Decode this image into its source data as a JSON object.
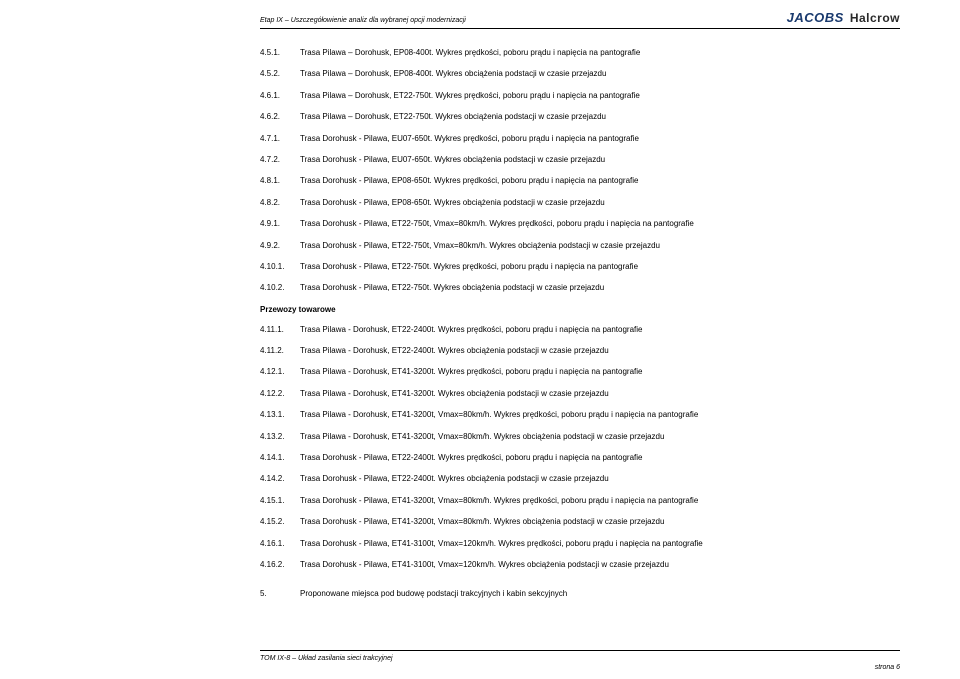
{
  "header": "Etap IX – Uszczegółowienie analiz dla wybranej opcji modernizacji",
  "logoJacobs": "JACOBS",
  "logoHalcrow": "Halcrow",
  "sectionHeading": "Przewozy towarowe",
  "rows": [
    {
      "n": "4.5.1.",
      "t": "Trasa Pilawa – Dorohusk, EP08-400t. Wykres prędkości, poboru prądu i napięcia na pantografie"
    },
    {
      "n": "4.5.2.",
      "t": "Trasa Pilawa – Dorohusk, EP08-400t. Wykres obciążenia podstacji w czasie przejazdu"
    },
    {
      "n": "4.6.1.",
      "t": "Trasa Pilawa – Dorohusk, ET22-750t. Wykres prędkości, poboru prądu i napięcia na pantografie"
    },
    {
      "n": "4.6.2.",
      "t": "Trasa Pilawa – Dorohusk, ET22-750t. Wykres obciążenia podstacji w czasie przejazdu"
    },
    {
      "n": "4.7.1.",
      "t": "Trasa Dorohusk - Pilawa, EU07-650t. Wykres prędkości, poboru prądu i napięcia na pantografie"
    },
    {
      "n": "4.7.2.",
      "t": "Trasa Dorohusk - Pilawa, EU07-650t. Wykres obciążenia podstacji w czasie przejazdu"
    },
    {
      "n": "4.8.1.",
      "t": "Trasa Dorohusk - Pilawa, EP08-650t. Wykres prędkości, poboru prądu i napięcia na pantografie"
    },
    {
      "n": "4.8.2.",
      "t": "Trasa Dorohusk - Pilawa, EP08-650t. Wykres obciążenia podstacji w czasie przejazdu"
    },
    {
      "n": "4.9.1.",
      "t": "Trasa Dorohusk - Pilawa, ET22-750t, Vmax=80km/h. Wykres prędkości, poboru prądu i napięcia na pantografie"
    },
    {
      "n": "4.9.2.",
      "t": "Trasa Dorohusk - Pilawa, ET22-750t, Vmax=80km/h. Wykres obciążenia podstacji w czasie przejazdu"
    },
    {
      "n": "4.10.1.",
      "t": "Trasa Dorohusk - Pilawa, ET22-750t. Wykres prędkości, poboru prądu i napięcia na pantografie"
    },
    {
      "n": "4.10.2.",
      "t": "Trasa Dorohusk - Pilawa, ET22-750t. Wykres obciążenia podstacji w czasie przejazdu"
    }
  ],
  "rows2": [
    {
      "n": "4.11.1.",
      "t": "Trasa Pilawa - Dorohusk, ET22-2400t. Wykres prędkości, poboru prądu i napięcia na pantografie"
    },
    {
      "n": "4.11.2.",
      "t": "Trasa Pilawa - Dorohusk, ET22-2400t. Wykres obciążenia podstacji w czasie przejazdu"
    },
    {
      "n": "4.12.1.",
      "t": "Trasa Pilawa - Dorohusk, ET41-3200t. Wykres prędkości, poboru prądu i napięcia na pantografie"
    },
    {
      "n": "4.12.2.",
      "t": "Trasa Pilawa - Dorohusk, ET41-3200t. Wykres obciążenia podstacji w czasie przejazdu"
    },
    {
      "n": "4.13.1.",
      "t": "Trasa Pilawa - Dorohusk, ET41-3200t, Vmax=80km/h. Wykres prędkości, poboru prądu i napięcia na pantografie"
    },
    {
      "n": "4.13.2.",
      "t": "Trasa Pilawa - Dorohusk, ET41-3200t, Vmax=80km/h. Wykres obciążenia podstacji w czasie przejazdu"
    },
    {
      "n": "4.14.1.",
      "t": "Trasa Dorohusk - Pilawa, ET22-2400t. Wykres prędkości, poboru prądu i napięcia na pantografie"
    },
    {
      "n": "4.14.2.",
      "t": "Trasa Dorohusk - Pilawa, ET22-2400t. Wykres obciążenia podstacji w czasie przejazdu"
    },
    {
      "n": "4.15.1.",
      "t": "Trasa Dorohusk - Pilawa, ET41-3200t, Vmax=80km/h. Wykres prędkości, poboru prądu i napięcia na pantografie"
    },
    {
      "n": "4.15.2.",
      "t": "Trasa Dorohusk - Pilawa, ET41-3200t, Vmax=80km/h. Wykres obciążenia podstacji w czasie przejazdu"
    },
    {
      "n": "4.16.1.",
      "t": "Trasa Dorohusk - Pilawa, ET41-3100t, Vmax=120km/h. Wykres prędkości, poboru prądu i napięcia na pantografie"
    },
    {
      "n": "4.16.2.",
      "t": "Trasa Dorohusk - Pilawa, ET41-3100t, Vmax=120km/h. Wykres obciążenia podstacji w czasie przejazdu"
    }
  ],
  "row5": {
    "n": "5.",
    "t": "Proponowane miejsca pod budowę podstacji trakcyjnych i kabin sekcyjnych"
  },
  "footer": "TOM IX-8 – Układ zasilania sieci trakcyjnej",
  "pageNum": "strona 6"
}
